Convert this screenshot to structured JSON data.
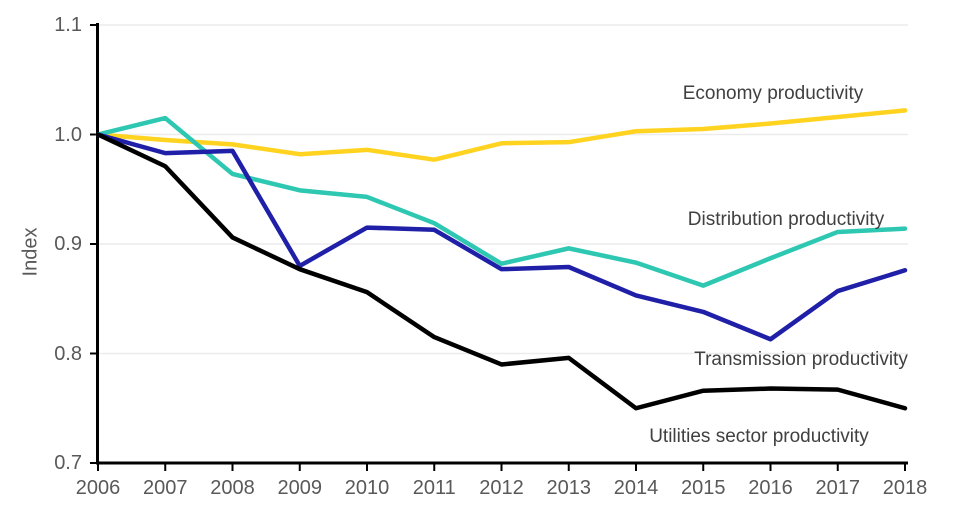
{
  "y_axis": {
    "title": "Index",
    "tick_labels": [
      "0.7",
      "0.8",
      "0.9",
      "1.0",
      "1.1"
    ]
  },
  "x_axis": {
    "tick_labels": [
      "2006",
      "2007",
      "2008",
      "2009",
      "2010",
      "2011",
      "2012",
      "2013",
      "2014",
      "2015",
      "2016",
      "2017",
      "2018"
    ]
  },
  "colors": {
    "axis_text": "#595959",
    "series_label_text": "#404040",
    "gridline": "#ececec",
    "axis_line": "#000000"
  },
  "chart_data": {
    "type": "line",
    "title": "",
    "xlabel": "",
    "ylabel": "Index",
    "x": [
      2006,
      2007,
      2008,
      2009,
      2010,
      2011,
      2012,
      2013,
      2014,
      2015,
      2016,
      2017,
      2018
    ],
    "xlim": [
      2006,
      2018
    ],
    "ylim": [
      0.7,
      1.1
    ],
    "y_ticks": [
      0.7,
      0.8,
      0.9,
      1.0,
      1.1
    ],
    "grid": "horizontal gridlines only",
    "legend": "direct labels beside lines",
    "series": [
      {
        "name": "Economy productivity",
        "color": "#FFD320",
        "values": [
          1.0,
          0.995,
          0.991,
          0.982,
          0.986,
          0.977,
          0.992,
          0.993,
          1.003,
          1.005,
          1.01,
          1.016,
          1.022
        ]
      },
      {
        "name": "Distribution productivity",
        "color": "#2DC7B2",
        "values": [
          1.0,
          1.015,
          0.964,
          0.949,
          0.943,
          0.919,
          0.882,
          0.896,
          0.883,
          0.862,
          0.887,
          0.911,
          0.914
        ]
      },
      {
        "name": "Transmission productivity",
        "color": "#1F1FA8",
        "values": [
          1.0,
          0.983,
          0.985,
          0.88,
          0.915,
          0.913,
          0.877,
          0.879,
          0.853,
          0.838,
          0.813,
          0.857,
          0.876
        ]
      },
      {
        "name": "Utilities sector productivity",
        "color": "#000000",
        "values": [
          1.0,
          0.971,
          0.906,
          0.877,
          0.856,
          0.815,
          0.79,
          0.796,
          0.75,
          0.766,
          0.768,
          0.767,
          0.75
        ]
      }
    ]
  }
}
